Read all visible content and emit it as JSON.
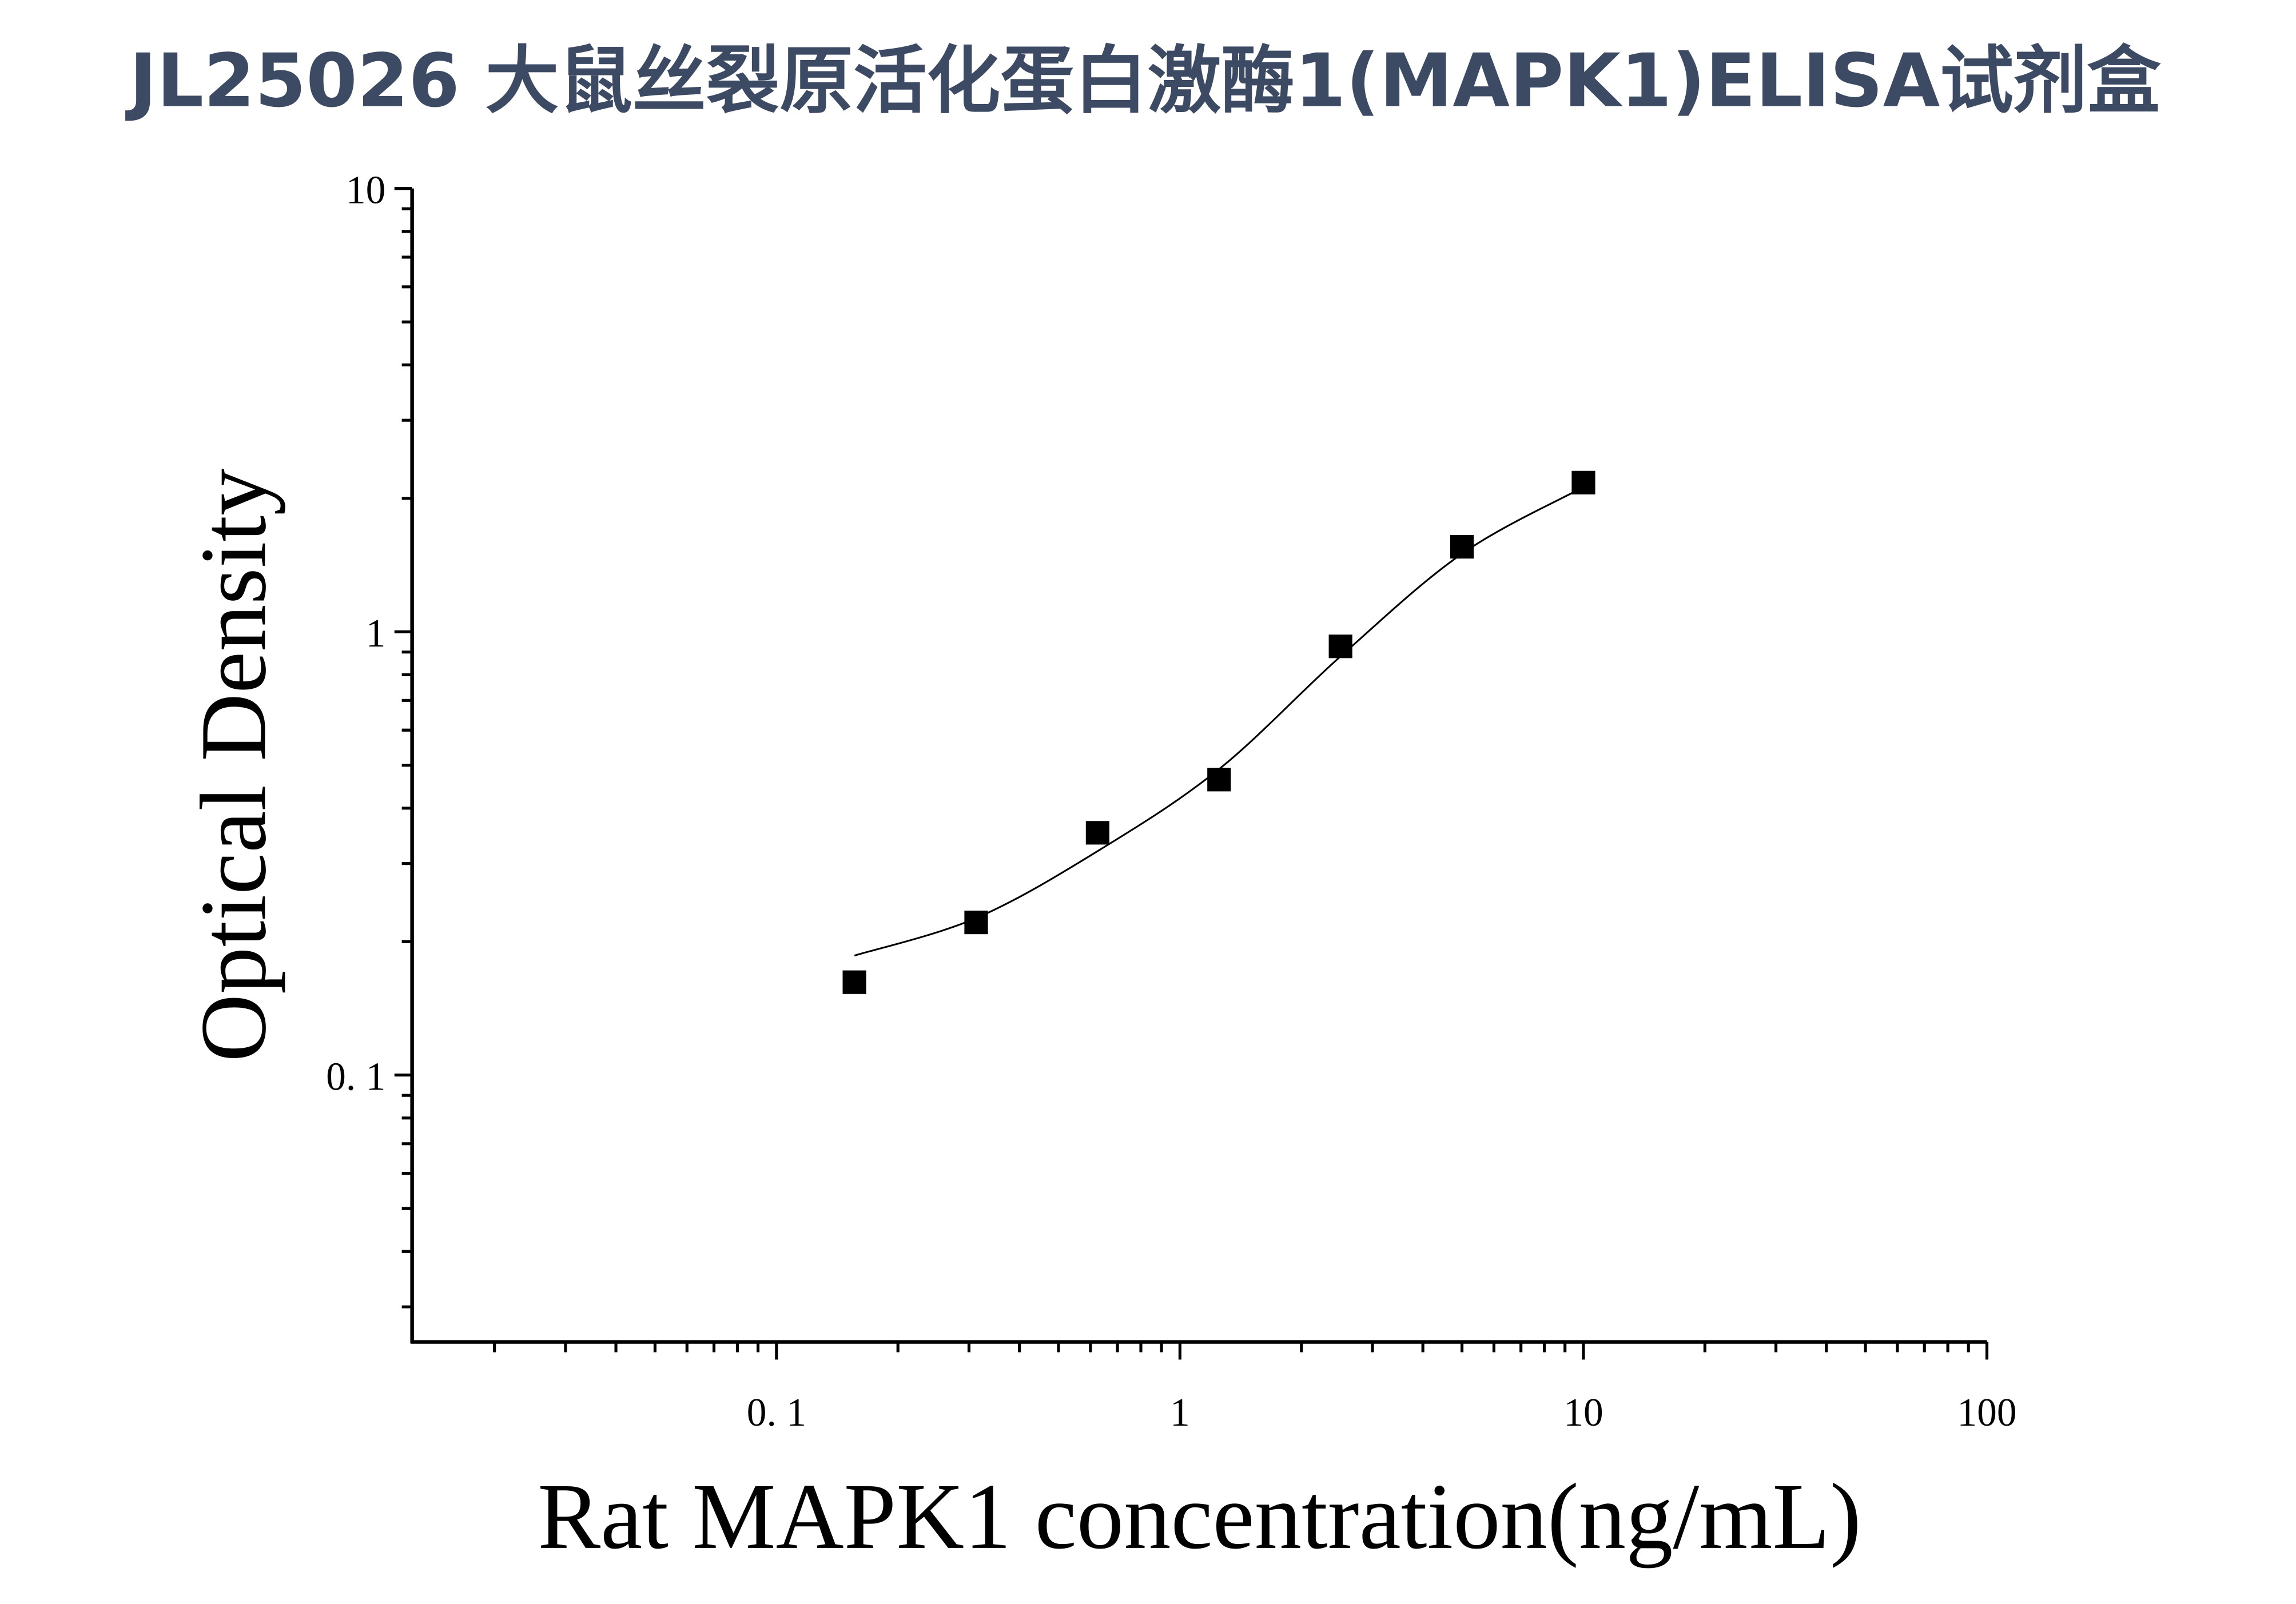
{
  "title": "JL25026 大鼠丝裂原活化蛋白激酶1(MAPK1)ELISA试剂盒",
  "colors": {
    "title": "#3d4a63",
    "marks": "#000000",
    "background": "#ffffff"
  },
  "chart_data": {
    "type": "scatter",
    "title": "JL25026 大鼠丝裂原活化蛋白激酶1(MAPK1)ELISA试剂盒",
    "xlabel": "Rat MAPK1 concentration(ng/mL)",
    "ylabel": "Optical Density",
    "xscale": "log",
    "yscale": "log",
    "xlim": [
      0.0125,
      100
    ],
    "ylim": [
      0.025,
      10
    ],
    "x_ticks": [
      {
        "value": 0.1,
        "label": "0. 1"
      },
      {
        "value": 1,
        "label": "1"
      },
      {
        "value": 10,
        "label": "10"
      },
      {
        "value": 100,
        "label": "100"
      }
    ],
    "y_ticks": [
      {
        "value": 0.1,
        "label": "0. 1"
      },
      {
        "value": 1,
        "label": "1"
      },
      {
        "value": 10,
        "label": "10"
      }
    ],
    "grid": false,
    "legend": "none",
    "marker": "square",
    "points": {
      "x": [
        0.156,
        0.3125,
        0.625,
        1.25,
        2.5,
        5,
        10
      ],
      "y": [
        0.162,
        0.221,
        0.352,
        0.464,
        0.927,
        1.555,
        2.17
      ]
    },
    "fit_curve": {
      "x": [
        0.156,
        0.3125,
        0.625,
        1.25,
        2.5,
        5,
        10
      ],
      "y": [
        0.186,
        0.226,
        0.32,
        0.49,
        0.88,
        1.5,
        2.12
      ]
    }
  }
}
